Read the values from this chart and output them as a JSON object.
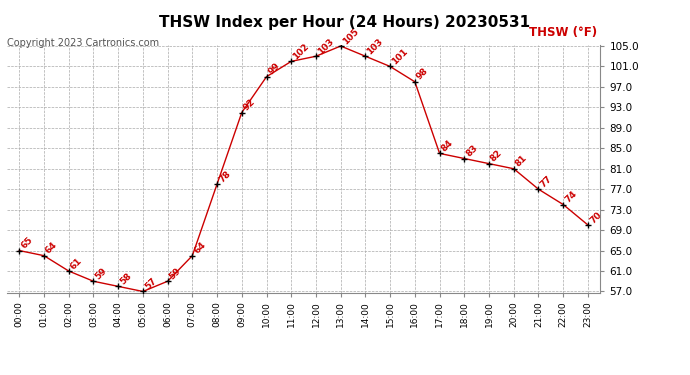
{
  "title": "THSW Index per Hour (24 Hours) 20230531",
  "copyright": "Copyright 2023 Cartronics.com",
  "legend_label": "THSW (°F)",
  "hours": [
    "00:00",
    "01:00",
    "02:00",
    "03:00",
    "04:00",
    "05:00",
    "06:00",
    "07:00",
    "08:00",
    "09:00",
    "10:00",
    "11:00",
    "12:00",
    "13:00",
    "14:00",
    "15:00",
    "16:00",
    "17:00",
    "18:00",
    "19:00",
    "20:00",
    "21:00",
    "22:00",
    "23:00"
  ],
  "values": [
    65,
    64,
    61,
    59,
    58,
    57,
    59,
    64,
    78,
    92,
    99,
    102,
    103,
    105,
    103,
    101,
    98,
    84,
    83,
    82,
    81,
    77,
    74,
    70
  ],
  "line_color": "#cc0000",
  "marker_color": "#000000",
  "label_color": "#cc0000",
  "grid_color": "#aaaaaa",
  "bg_color": "#ffffff",
  "ylim": [
    57.0,
    105.0
  ],
  "yticks": [
    57.0,
    61.0,
    65.0,
    69.0,
    73.0,
    77.0,
    81.0,
    85.0,
    89.0,
    93.0,
    97.0,
    101.0,
    105.0
  ],
  "title_fontsize": 11,
  "copyright_fontsize": 7,
  "legend_fontsize": 8.5,
  "label_fontsize": 6.5,
  "xtick_fontsize": 6.5,
  "ytick_fontsize": 7.5
}
